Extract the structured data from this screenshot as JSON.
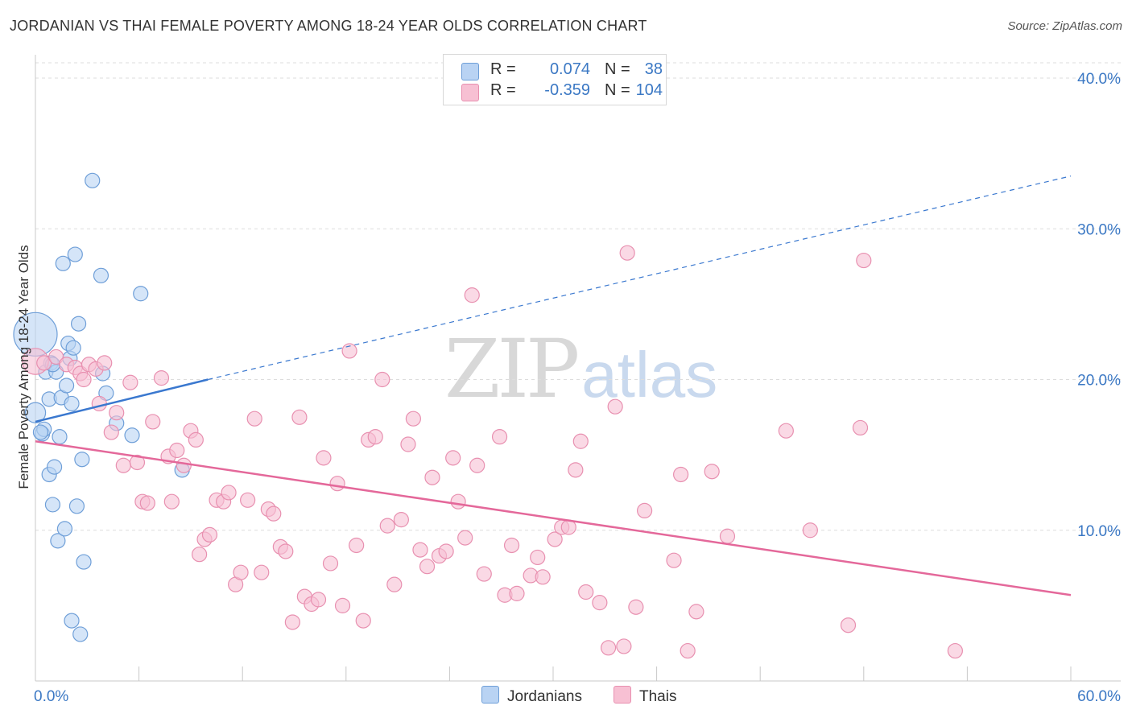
{
  "header": {
    "title": "JORDANIAN VS THAI FEMALE POVERTY AMONG 18-24 YEAR OLDS CORRELATION CHART",
    "source": "Source: ZipAtlas.com"
  },
  "watermark": {
    "zip": "ZIP",
    "atlas": "atlas"
  },
  "legend_top": {
    "rows": [
      {
        "r_label": "R =",
        "r_value": "0.074",
        "n_label": "N =",
        "n_value": "38"
      },
      {
        "r_label": "R =",
        "r_value": "-0.359",
        "n_label": "N =",
        "n_value": "104"
      }
    ]
  },
  "legend_bottom": {
    "jordanians": "Jordanians",
    "thais": "Thais"
  },
  "colors": {
    "jordanians_fill": "#b9d3f3",
    "jordanians_stroke": "#6f9fd8",
    "jordanians_line": "#3a78cf",
    "thais_fill": "#f7c0d3",
    "thais_stroke": "#e890b0",
    "thais_line": "#e4689a",
    "tick_label": "#3b78c4",
    "grid": "#dddddd"
  },
  "chart_data": {
    "type": "scatter",
    "title": "JORDANIAN VS THAI FEMALE POVERTY AMONG 18-24 YEAR OLDS CORRELATION CHART",
    "xlabel": "",
    "ylabel": "Female Poverty Among 18-24 Year Olds",
    "xlim": [
      0,
      60
    ],
    "ylim": [
      0,
      40
    ],
    "x_tick_labels": [
      "0.0%",
      "60.0%"
    ],
    "y_ticks": [
      10,
      20,
      30,
      40
    ],
    "y_tick_labels": [
      "10.0%",
      "20.0%",
      "30.0%",
      "40.0%"
    ],
    "grid": "horizontal dashed",
    "legend": "bottom-center",
    "series": [
      {
        "name": "Jordanians",
        "r": 0.074,
        "n": 38,
        "trend": {
          "x": [
            0,
            10
          ],
          "y": [
            17.2,
            20.0
          ],
          "dashed_extension": {
            "x": [
              10,
              60
            ],
            "y": [
              20.0,
              33.5
            ]
          }
        },
        "points": [
          [
            0,
            23.0,
            3
          ],
          [
            0,
            17.8,
            1.4
          ],
          [
            0.4,
            16.4,
            1
          ],
          [
            0.5,
            16.7,
            1
          ],
          [
            0.6,
            20.5,
            1
          ],
          [
            0.8,
            18.7,
            1
          ],
          [
            0.8,
            13.7,
            1
          ],
          [
            0.9,
            21.1,
            1
          ],
          [
            1.0,
            11.7,
            1
          ],
          [
            1.1,
            14.2,
            1
          ],
          [
            1.2,
            20.5,
            1
          ],
          [
            1.3,
            9.3,
            1
          ],
          [
            1.4,
            16.2,
            1
          ],
          [
            1.5,
            18.8,
            1
          ],
          [
            1.6,
            27.7,
            1
          ],
          [
            1.7,
            10.1,
            1
          ],
          [
            1.8,
            19.6,
            1
          ],
          [
            1.9,
            22.4,
            1
          ],
          [
            2.0,
            21.4,
            1
          ],
          [
            2.1,
            4.0,
            1
          ],
          [
            2.1,
            18.4,
            1
          ],
          [
            2.2,
            22.1,
            1
          ],
          [
            2.3,
            28.3,
            1
          ],
          [
            2.4,
            11.6,
            1
          ],
          [
            2.5,
            23.7,
            1
          ],
          [
            2.6,
            3.1,
            1
          ],
          [
            2.7,
            14.7,
            1
          ],
          [
            2.8,
            7.9,
            1
          ],
          [
            3.3,
            33.2,
            1
          ],
          [
            3.8,
            26.9,
            1
          ],
          [
            3.9,
            20.4,
            1
          ],
          [
            4.1,
            19.1,
            1
          ],
          [
            4.7,
            17.1,
            1
          ],
          [
            5.6,
            16.3,
            1
          ],
          [
            6.1,
            25.7,
            1
          ],
          [
            8.5,
            14.0,
            1
          ],
          [
            0.3,
            16.5,
            1
          ],
          [
            1.0,
            21.0,
            1
          ]
        ]
      },
      {
        "name": "Thais",
        "r": -0.359,
        "n": 104,
        "trend": {
          "x": [
            0,
            60
          ],
          "y": [
            15.9,
            5.7
          ]
        },
        "points": [
          [
            0,
            21.2,
            1.8
          ],
          [
            0.5,
            21.1,
            1
          ],
          [
            1.2,
            21.5,
            1
          ],
          [
            1.8,
            21.0,
            1
          ],
          [
            2.3,
            20.8,
            1
          ],
          [
            2.6,
            20.4,
            1
          ],
          [
            2.8,
            20.0,
            1
          ],
          [
            3.1,
            21.0,
            1
          ],
          [
            3.5,
            20.7,
            1
          ],
          [
            3.7,
            18.4,
            1
          ],
          [
            4.0,
            21.1,
            1
          ],
          [
            4.4,
            16.5,
            1
          ],
          [
            4.7,
            17.8,
            1
          ],
          [
            5.1,
            14.3,
            1
          ],
          [
            5.5,
            19.8,
            1
          ],
          [
            5.9,
            14.5,
            1
          ],
          [
            6.2,
            11.9,
            1
          ],
          [
            6.5,
            11.8,
            1
          ],
          [
            6.8,
            17.2,
            1
          ],
          [
            7.3,
            20.1,
            1
          ],
          [
            7.7,
            14.9,
            1
          ],
          [
            7.9,
            11.9,
            1
          ],
          [
            8.2,
            15.3,
            1
          ],
          [
            8.6,
            14.3,
            1
          ],
          [
            9.0,
            16.6,
            1
          ],
          [
            9.3,
            16.0,
            1
          ],
          [
            9.5,
            8.4,
            1
          ],
          [
            9.8,
            9.4,
            1
          ],
          [
            10.1,
            9.7,
            1
          ],
          [
            10.5,
            12.0,
            1
          ],
          [
            10.9,
            11.9,
            1
          ],
          [
            11.2,
            12.5,
            1
          ],
          [
            11.6,
            6.4,
            1
          ],
          [
            11.9,
            7.2,
            1
          ],
          [
            12.3,
            12.0,
            1
          ],
          [
            12.7,
            17.4,
            1
          ],
          [
            13.1,
            7.2,
            1
          ],
          [
            13.5,
            11.4,
            1
          ],
          [
            13.8,
            11.1,
            1
          ],
          [
            14.2,
            8.9,
            1
          ],
          [
            14.5,
            8.6,
            1
          ],
          [
            14.9,
            3.9,
            1
          ],
          [
            15.3,
            17.5,
            1
          ],
          [
            15.6,
            5.6,
            1
          ],
          [
            16.0,
            5.1,
            1
          ],
          [
            16.4,
            5.4,
            1
          ],
          [
            16.7,
            14.8,
            1
          ],
          [
            17.1,
            7.8,
            1
          ],
          [
            17.5,
            13.1,
            1
          ],
          [
            17.8,
            5.0,
            1
          ],
          [
            18.2,
            21.9,
            1
          ],
          [
            18.6,
            9.0,
            1
          ],
          [
            19.0,
            4.0,
            1
          ],
          [
            19.3,
            16.0,
            1
          ],
          [
            19.7,
            16.2,
            1
          ],
          [
            20.1,
            20.0,
            1
          ],
          [
            20.4,
            10.3,
            1
          ],
          [
            20.8,
            6.4,
            1
          ],
          [
            21.2,
            10.7,
            1
          ],
          [
            21.6,
            15.7,
            1
          ],
          [
            21.9,
            17.4,
            1
          ],
          [
            22.3,
            8.7,
            1
          ],
          [
            22.7,
            7.6,
            1
          ],
          [
            23.0,
            13.5,
            1
          ],
          [
            23.4,
            8.3,
            1
          ],
          [
            23.8,
            8.6,
            1
          ],
          [
            24.2,
            14.8,
            1
          ],
          [
            24.5,
            11.9,
            1
          ],
          [
            24.9,
            9.5,
            1
          ],
          [
            25.3,
            25.6,
            1
          ],
          [
            25.6,
            14.3,
            1
          ],
          [
            26.0,
            7.1,
            1
          ],
          [
            26.9,
            16.2,
            1
          ],
          [
            27.2,
            5.7,
            1
          ],
          [
            27.6,
            9.0,
            1
          ],
          [
            27.9,
            5.8,
            1
          ],
          [
            28.7,
            7.0,
            1
          ],
          [
            29.1,
            8.2,
            1
          ],
          [
            29.4,
            6.9,
            1
          ],
          [
            30.1,
            9.4,
            1
          ],
          [
            30.5,
            10.2,
            1
          ],
          [
            30.9,
            10.2,
            1
          ],
          [
            31.3,
            14.0,
            1
          ],
          [
            31.6,
            15.9,
            1
          ],
          [
            31.9,
            5.9,
            1
          ],
          [
            32.7,
            5.2,
            1
          ],
          [
            33.2,
            2.2,
            1
          ],
          [
            33.6,
            18.2,
            1
          ],
          [
            34.1,
            2.3,
            1
          ],
          [
            34.3,
            28.4,
            1
          ],
          [
            34.8,
            4.9,
            1
          ],
          [
            35.3,
            11.3,
            1
          ],
          [
            37.0,
            8.0,
            1
          ],
          [
            37.4,
            13.7,
            1
          ],
          [
            37.8,
            2.0,
            1
          ],
          [
            38.3,
            4.6,
            1
          ],
          [
            39.2,
            13.9,
            1
          ],
          [
            40.1,
            9.6,
            1
          ],
          [
            43.5,
            16.6,
            1
          ],
          [
            44.9,
            10.0,
            1
          ],
          [
            47.1,
            3.7,
            1
          ],
          [
            47.8,
            16.8,
            1
          ],
          [
            48.0,
            27.9,
            1
          ],
          [
            53.3,
            2.0,
            1
          ]
        ]
      }
    ]
  }
}
